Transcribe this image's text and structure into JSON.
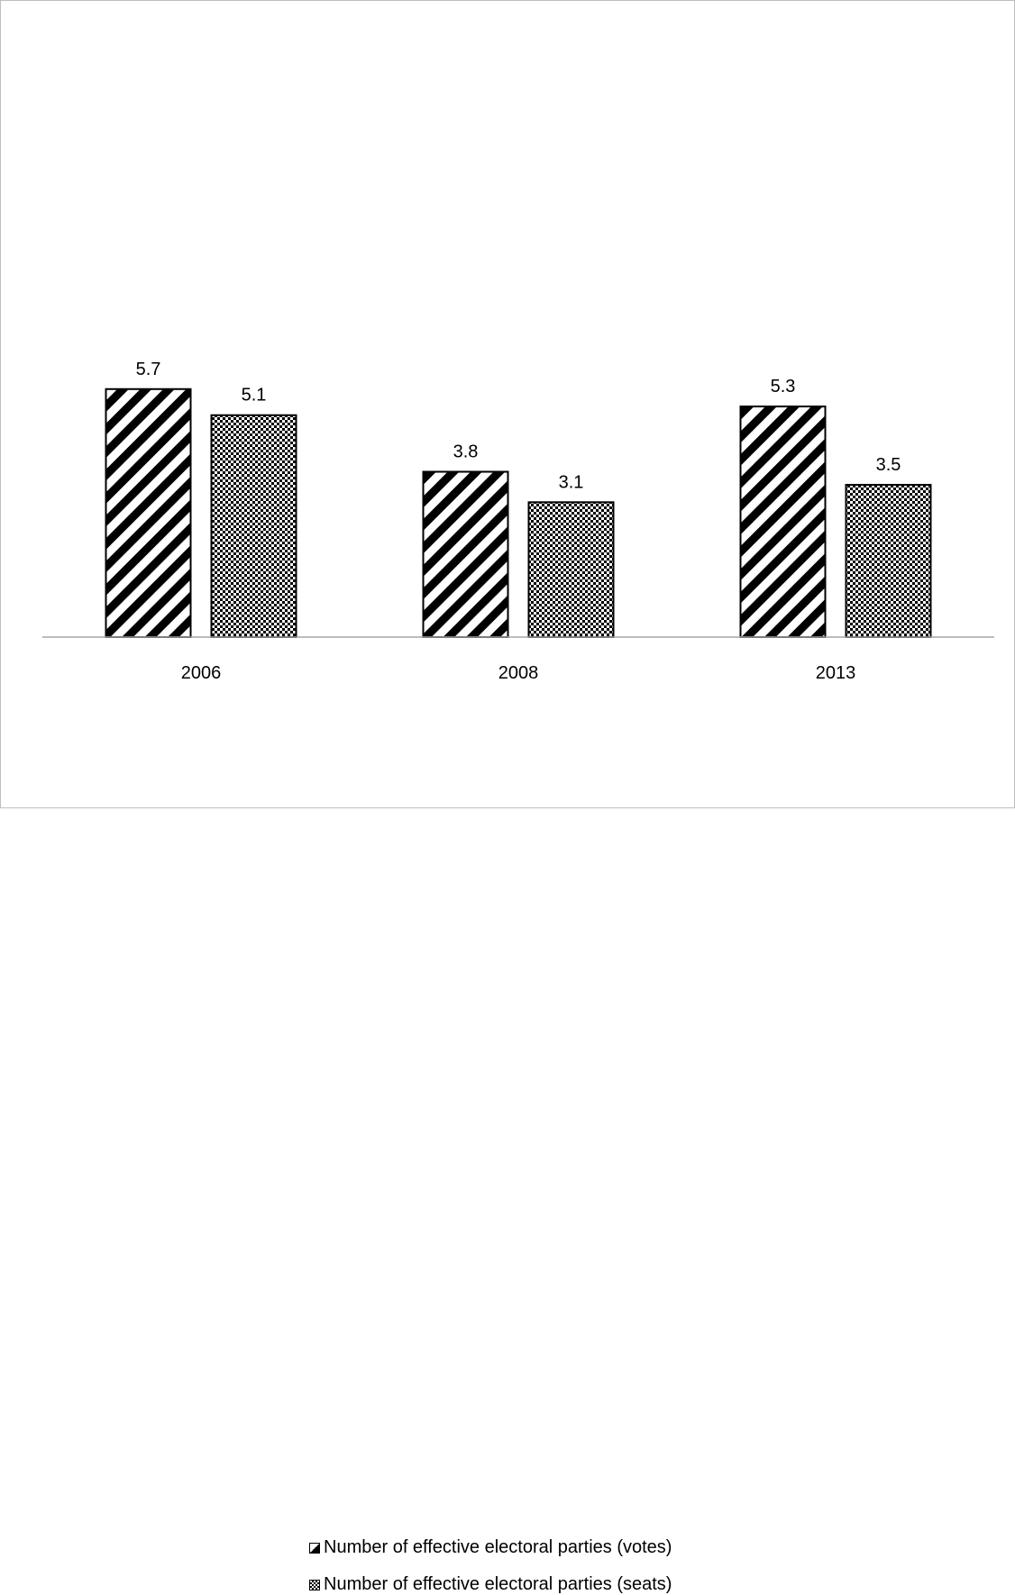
{
  "chart_data": {
    "type": "bar",
    "categories": [
      "2006",
      "2008",
      "2013"
    ],
    "series": [
      {
        "name": "Number of effective electoral parties (votes)",
        "values": [
          5.7,
          3.8,
          5.3
        ],
        "labels": [
          "5.7",
          "3.8",
          "5.3"
        ],
        "pattern": "diagonal-stripes"
      },
      {
        "name": "Number of effective electoral parties (seats)",
        "values": [
          5.1,
          3.1,
          3.5
        ],
        "labels": [
          "5.1",
          "3.1",
          "3.5"
        ],
        "pattern": "checkerboard"
      }
    ],
    "title": "",
    "xlabel": "",
    "ylabel": "",
    "ylim": [
      0,
      14
    ],
    "grid": false,
    "legend": "bottom",
    "colors": {
      "bar_stroke": "#000000",
      "axis": "#a6a6a6",
      "fill": "#ffffff"
    }
  }
}
